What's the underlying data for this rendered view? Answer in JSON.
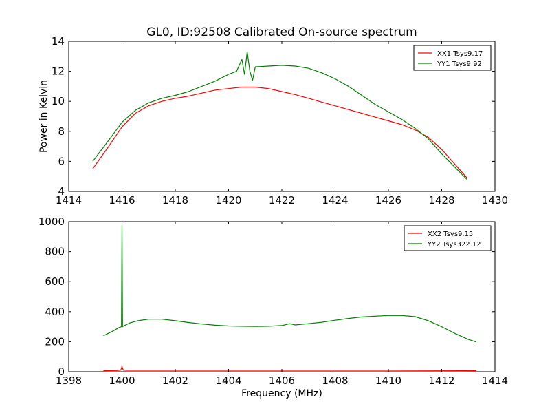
{
  "chart_data": [
    {
      "type": "line",
      "title": "GL0, ID:92508 Calibrated On-source spectrum",
      "xlabel": "",
      "ylabel": "Power in Kelvin",
      "xlim": [
        1414,
        1430
      ],
      "ylim": [
        4,
        14
      ],
      "xticks": [
        "1414",
        "1416",
        "1418",
        "1420",
        "1422",
        "1424",
        "1426",
        "1428",
        "1430"
      ],
      "yticks": [
        "4",
        "6",
        "8",
        "10",
        "12",
        "14"
      ],
      "legend_position": "top-right",
      "series": [
        {
          "name": "XX1 Tsys9.17",
          "color": "#ff0000",
          "x": [
            1414.9,
            1415.5,
            1416.0,
            1416.5,
            1417.0,
            1417.5,
            1418.0,
            1418.5,
            1419.0,
            1419.5,
            1420.0,
            1420.5,
            1421.0,
            1421.5,
            1422.0,
            1422.5,
            1423.0,
            1423.5,
            1424.0,
            1424.5,
            1425.0,
            1425.5,
            1426.0,
            1426.5,
            1427.0,
            1427.5,
            1428.0,
            1428.5,
            1428.95
          ],
          "y": [
            5.5,
            7.0,
            8.3,
            9.2,
            9.7,
            10.0,
            10.2,
            10.35,
            10.55,
            10.75,
            10.85,
            10.95,
            10.95,
            10.85,
            10.65,
            10.45,
            10.2,
            9.95,
            9.7,
            9.45,
            9.2,
            8.95,
            8.7,
            8.45,
            8.1,
            7.6,
            6.8,
            5.8,
            4.9
          ]
        },
        {
          "name": "YY1 Tsys9.92",
          "color": "#008000",
          "x": [
            1414.9,
            1415.5,
            1416.0,
            1416.5,
            1417.0,
            1417.5,
            1418.0,
            1418.5,
            1419.0,
            1419.5,
            1420.0,
            1420.3,
            1420.5,
            1420.6,
            1420.7,
            1420.8,
            1420.9,
            1421.0,
            1421.5,
            1422.0,
            1422.5,
            1423.0,
            1423.5,
            1424.0,
            1424.5,
            1425.0,
            1425.5,
            1426.0,
            1426.5,
            1427.0,
            1427.5,
            1428.0,
            1428.5,
            1428.95
          ],
          "y": [
            6.0,
            7.4,
            8.6,
            9.4,
            9.9,
            10.2,
            10.4,
            10.65,
            11.0,
            11.35,
            11.8,
            12.0,
            12.8,
            11.8,
            13.3,
            12.0,
            11.4,
            12.3,
            12.35,
            12.4,
            12.35,
            12.2,
            11.9,
            11.5,
            11.0,
            10.4,
            9.8,
            9.3,
            8.8,
            8.2,
            7.5,
            6.5,
            5.6,
            4.8
          ]
        }
      ]
    },
    {
      "type": "line",
      "title": "",
      "xlabel": "Frequency (MHz)",
      "ylabel": "",
      "xlim": [
        1398,
        1414
      ],
      "ylim": [
        0,
        1000
      ],
      "xticks": [
        "1398",
        "1400",
        "1402",
        "1404",
        "1406",
        "1408",
        "1410",
        "1412",
        "1414"
      ],
      "yticks": [
        "0",
        "200",
        "400",
        "600",
        "800",
        "1000"
      ],
      "legend_position": "top-right",
      "series": [
        {
          "name": "XX2 Tsys9.15",
          "color": "#ff0000",
          "x": [
            1399.3,
            1399.8,
            1399.95,
            1400.0,
            1400.05,
            1400.2,
            1402.0,
            1404.0,
            1406.0,
            1408.0,
            1410.0,
            1412.0,
            1413.3
          ],
          "y": [
            7,
            8,
            10,
            35,
            10,
            9,
            9,
            9,
            9,
            9,
            9,
            8,
            7
          ]
        },
        {
          "name": "YY2 Tsys322.12",
          "color": "#008000",
          "x": [
            1399.3,
            1399.6,
            1399.9,
            1399.98,
            1400.0,
            1400.02,
            1400.06,
            1400.3,
            1400.6,
            1401.0,
            1401.5,
            1402.0,
            1402.5,
            1403.0,
            1403.5,
            1404.0,
            1404.5,
            1405.0,
            1405.5,
            1406.0,
            1406.3,
            1406.5,
            1407.0,
            1407.5,
            1408.0,
            1408.5,
            1409.0,
            1409.5,
            1410.0,
            1410.5,
            1411.0,
            1411.5,
            1412.0,
            1412.5,
            1413.0,
            1413.3
          ],
          "y": [
            240,
            265,
            295,
            300,
            975,
            300,
            305,
            325,
            340,
            350,
            350,
            340,
            328,
            318,
            310,
            305,
            303,
            302,
            303,
            308,
            320,
            312,
            320,
            330,
            343,
            355,
            365,
            370,
            375,
            375,
            367,
            340,
            300,
            255,
            215,
            198
          ]
        }
      ]
    }
  ]
}
